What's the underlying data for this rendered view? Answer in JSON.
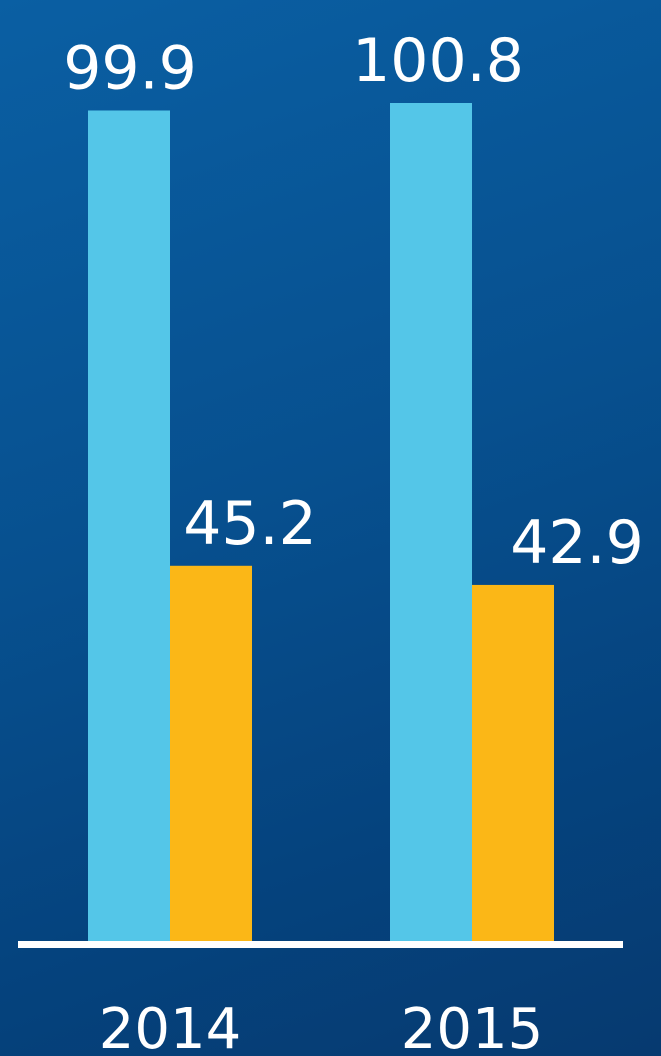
{
  "chart_data": {
    "type": "bar",
    "categories": [
      "2014",
      "2015"
    ],
    "series": [
      {
        "values": [
          99.9,
          100.8
        ],
        "color": "#54c6e8",
        "labels": [
          "99.9",
          "100.8"
        ]
      },
      {
        "values": [
          45.2,
          42.9
        ],
        "color": "#fbb717",
        "labels": [
          "45.2",
          "42.9"
        ]
      }
    ],
    "ylim": [
      0,
      100.8
    ],
    "grid": false,
    "legend": "none",
    "baseline_color": "#ffffff"
  }
}
